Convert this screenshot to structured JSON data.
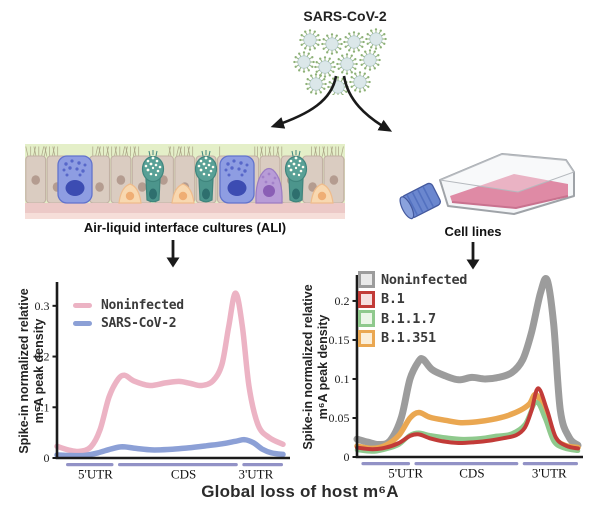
{
  "header": {
    "virus_label": "SARS-CoV-2"
  },
  "branches": {
    "left": {
      "label": "Air-liquid interface cultures (ALI)"
    },
    "right": {
      "label": "Cell lines"
    }
  },
  "footer": {
    "title": "Global loss of host m⁶A"
  },
  "palette": {
    "axis": "#1b1b1b",
    "region_bar": "#9292c6"
  },
  "chart_data": [
    {
      "type": "line",
      "context": "Air-liquid interface cultures (ALI)",
      "ylabel": "Spike-in normalized relative m⁶A peak density",
      "ylabel_lines": [
        "Spike-in normalized relative",
        "m⁶A peak density"
      ],
      "ylim": [
        0,
        0.345
      ],
      "grid": false,
      "legend_position": "top-left",
      "yticks": [
        {
          "v": 0,
          "label": "0"
        },
        {
          "v": 0.1,
          "label": "0.1"
        },
        {
          "v": 0.2,
          "label": "0.2"
        },
        {
          "v": 0.3,
          "label": "0.3"
        }
      ],
      "regions": [
        {
          "label": "5'UTR",
          "start": 0.04,
          "end": 0.25,
          "label_x": 0.17
        },
        {
          "label": "CDS",
          "start": 0.27,
          "end": 0.8,
          "label_x": 0.56
        },
        {
          "label": "3'UTR",
          "start": 0.82,
          "end": 1.0,
          "label_x": 0.88
        }
      ],
      "series": [
        {
          "name": "Noninfected",
          "color": "#ecb3c4",
          "swatch": "line",
          "width": 5.5,
          "z": 1,
          "points": [
            [
              0,
              0.023
            ],
            [
              0.05,
              0.016
            ],
            [
              0.1,
              0.013
            ],
            [
              0.15,
              0.022
            ],
            [
              0.19,
              0.055
            ],
            [
              0.23,
              0.12
            ],
            [
              0.27,
              0.155
            ],
            [
              0.3,
              0.163
            ],
            [
              0.34,
              0.152
            ],
            [
              0.41,
              0.143
            ],
            [
              0.48,
              0.148
            ],
            [
              0.54,
              0.151
            ],
            [
              0.59,
              0.147
            ],
            [
              0.64,
              0.143
            ],
            [
              0.69,
              0.152
            ],
            [
              0.73,
              0.185
            ],
            [
              0.76,
              0.26
            ],
            [
              0.79,
              0.325
            ],
            [
              0.82,
              0.26
            ],
            [
              0.85,
              0.14
            ],
            [
              0.89,
              0.065
            ],
            [
              0.94,
              0.04
            ],
            [
              1,
              0.027
            ]
          ]
        },
        {
          "name": "SARS-CoV-2",
          "color": "#8ca0d6",
          "swatch": "line",
          "width": 5.5,
          "z": 2,
          "points": [
            [
              0,
              0.006
            ],
            [
              0.06,
              0.005
            ],
            [
              0.12,
              0.005
            ],
            [
              0.18,
              0.01
            ],
            [
              0.24,
              0.018
            ],
            [
              0.29,
              0.022
            ],
            [
              0.35,
              0.019
            ],
            [
              0.42,
              0.016
            ],
            [
              0.5,
              0.017
            ],
            [
              0.58,
              0.02
            ],
            [
              0.66,
              0.024
            ],
            [
              0.73,
              0.028
            ],
            [
              0.79,
              0.033
            ],
            [
              0.83,
              0.036
            ],
            [
              0.87,
              0.03
            ],
            [
              0.91,
              0.017
            ],
            [
              0.95,
              0.01
            ],
            [
              1,
              0.007
            ]
          ]
        }
      ]
    },
    {
      "type": "line",
      "context": "Cell lines",
      "ylabel": "Spike-in normalized relative m⁶A peak density",
      "ylabel_lines": [
        "Spike-in normalized relative",
        "m⁶A peak density"
      ],
      "ylim": [
        0,
        0.232
      ],
      "grid": false,
      "legend_position": "top-left",
      "yticks": [
        {
          "v": 0,
          "label": "0"
        },
        {
          "v": 0.05,
          "label": "0.05"
        },
        {
          "v": 0.1,
          "label": "0.1"
        },
        {
          "v": 0.15,
          "label": "0.15"
        },
        {
          "v": 0.2,
          "label": "0.2"
        }
      ],
      "regions": [
        {
          "label": "5'UTR",
          "start": 0.02,
          "end": 0.24,
          "label_x": 0.22
        },
        {
          "label": "CDS",
          "start": 0.26,
          "end": 0.73,
          "label_x": 0.52
        },
        {
          "label": "3'UTR",
          "start": 0.75,
          "end": 1.0,
          "label_x": 0.87
        }
      ],
      "series": [
        {
          "name": "Noninfected",
          "color": "#9c9c9c",
          "swatch": "box",
          "swatch_fill": "#e9e9e9",
          "width": 7,
          "z": 1,
          "points": [
            [
              0,
              0.023
            ],
            [
              0.05,
              0.019
            ],
            [
              0.1,
              0.016
            ],
            [
              0.15,
              0.021
            ],
            [
              0.2,
              0.05
            ],
            [
              0.24,
              0.1
            ],
            [
              0.28,
              0.123
            ],
            [
              0.3,
              0.125
            ],
            [
              0.34,
              0.112
            ],
            [
              0.4,
              0.104
            ],
            [
              0.46,
              0.099
            ],
            [
              0.52,
              0.102
            ],
            [
              0.58,
              0.1
            ],
            [
              0.64,
              0.102
            ],
            [
              0.7,
              0.108
            ],
            [
              0.75,
              0.125
            ],
            [
              0.79,
              0.16
            ],
            [
              0.83,
              0.21
            ],
            [
              0.86,
              0.227
            ],
            [
              0.89,
              0.17
            ],
            [
              0.92,
              0.06
            ],
            [
              0.96,
              0.025
            ],
            [
              1,
              0.015
            ]
          ]
        },
        {
          "name": "B.1",
          "color": "#c23b38",
          "swatch": "box",
          "swatch_fill": "#f6dfdf",
          "width": 4,
          "z": 4,
          "points": [
            [
              0,
              0.012
            ],
            [
              0.07,
              0.01
            ],
            [
              0.13,
              0.012
            ],
            [
              0.19,
              0.018
            ],
            [
              0.24,
              0.027
            ],
            [
              0.28,
              0.029
            ],
            [
              0.33,
              0.024
            ],
            [
              0.39,
              0.02
            ],
            [
              0.46,
              0.018
            ],
            [
              0.53,
              0.019
            ],
            [
              0.6,
              0.021
            ],
            [
              0.66,
              0.024
            ],
            [
              0.72,
              0.028
            ],
            [
              0.76,
              0.038
            ],
            [
              0.79,
              0.06
            ],
            [
              0.82,
              0.088
            ],
            [
              0.86,
              0.06
            ],
            [
              0.9,
              0.025
            ],
            [
              0.95,
              0.014
            ],
            [
              1,
              0.011
            ]
          ]
        },
        {
          "name": "B.1.1.7",
          "color": "#8fc98d",
          "swatch": "box",
          "swatch_fill": "#ecf6e8",
          "width": 4.5,
          "z": 3,
          "points": [
            [
              0,
              0.009
            ],
            [
              0.07,
              0.007
            ],
            [
              0.13,
              0.01
            ],
            [
              0.19,
              0.016
            ],
            [
              0.24,
              0.028
            ],
            [
              0.28,
              0.031
            ],
            [
              0.33,
              0.028
            ],
            [
              0.4,
              0.025
            ],
            [
              0.48,
              0.023
            ],
            [
              0.56,
              0.024
            ],
            [
              0.63,
              0.027
            ],
            [
              0.7,
              0.03
            ],
            [
              0.76,
              0.042
            ],
            [
              0.81,
              0.07
            ],
            [
              0.85,
              0.05
            ],
            [
              0.89,
              0.02
            ],
            [
              0.94,
              0.011
            ],
            [
              1,
              0.008
            ]
          ]
        },
        {
          "name": "B.1.351",
          "color": "#eaa751",
          "swatch": "box",
          "swatch_fill": "#fbeed8",
          "width": 5.5,
          "z": 2,
          "points": [
            [
              0,
              0.014
            ],
            [
              0.07,
              0.011
            ],
            [
              0.13,
              0.015
            ],
            [
              0.19,
              0.028
            ],
            [
              0.24,
              0.05
            ],
            [
              0.28,
              0.057
            ],
            [
              0.33,
              0.051
            ],
            [
              0.4,
              0.047
            ],
            [
              0.47,
              0.044
            ],
            [
              0.54,
              0.045
            ],
            [
              0.61,
              0.048
            ],
            [
              0.68,
              0.053
            ],
            [
              0.74,
              0.06
            ],
            [
              0.78,
              0.068
            ],
            [
              0.81,
              0.08
            ],
            [
              0.85,
              0.058
            ],
            [
              0.89,
              0.026
            ],
            [
              0.94,
              0.015
            ],
            [
              1,
              0.012
            ]
          ]
        }
      ]
    }
  ]
}
